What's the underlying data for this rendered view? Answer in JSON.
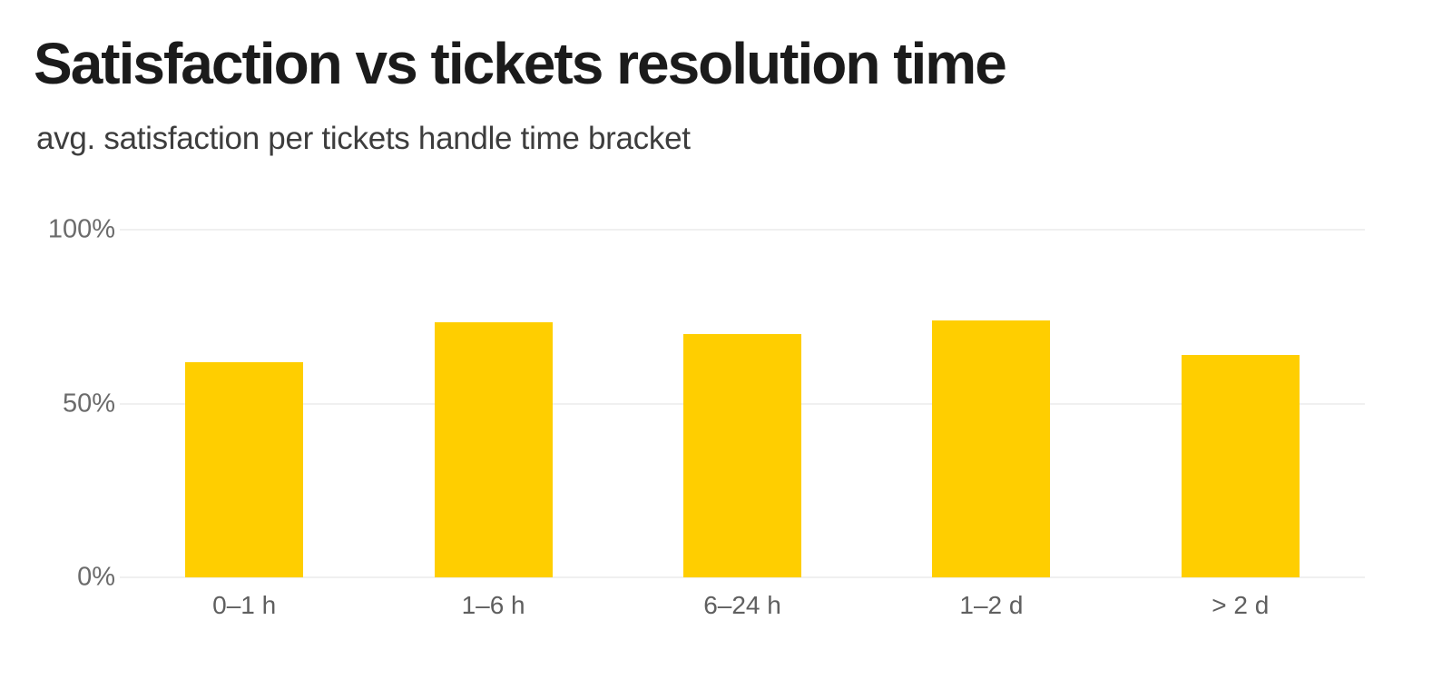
{
  "page": {
    "background": "#ffffff"
  },
  "header": {
    "title": "Satisfaction vs tickets resolution time",
    "subtitle": "avg. satisfaction per tickets handle time bracket"
  },
  "chart_data": {
    "type": "bar",
    "title": "Satisfaction vs tickets resolution time",
    "subtitle": "avg. satisfaction per tickets handle time bracket",
    "categories": [
      "0–1 h",
      "1–6 h",
      "6–24 h",
      "1–2 d",
      "> 2 d"
    ],
    "values": [
      62,
      73.5,
      70,
      74,
      64
    ],
    "unit": "%",
    "xlabel": "",
    "ylabel": "",
    "ylim": [
      0,
      100
    ],
    "y_ticks": [
      {
        "label": "0%",
        "value": 0
      },
      {
        "label": "50%",
        "value": 50
      },
      {
        "label": "100%",
        "value": 100
      }
    ],
    "grid": "horizontal",
    "legend_position": "none",
    "bar_color": "#FFCE00",
    "gridline_color": "#F0F0F0",
    "axis_label_color": "#6B6B6B"
  }
}
